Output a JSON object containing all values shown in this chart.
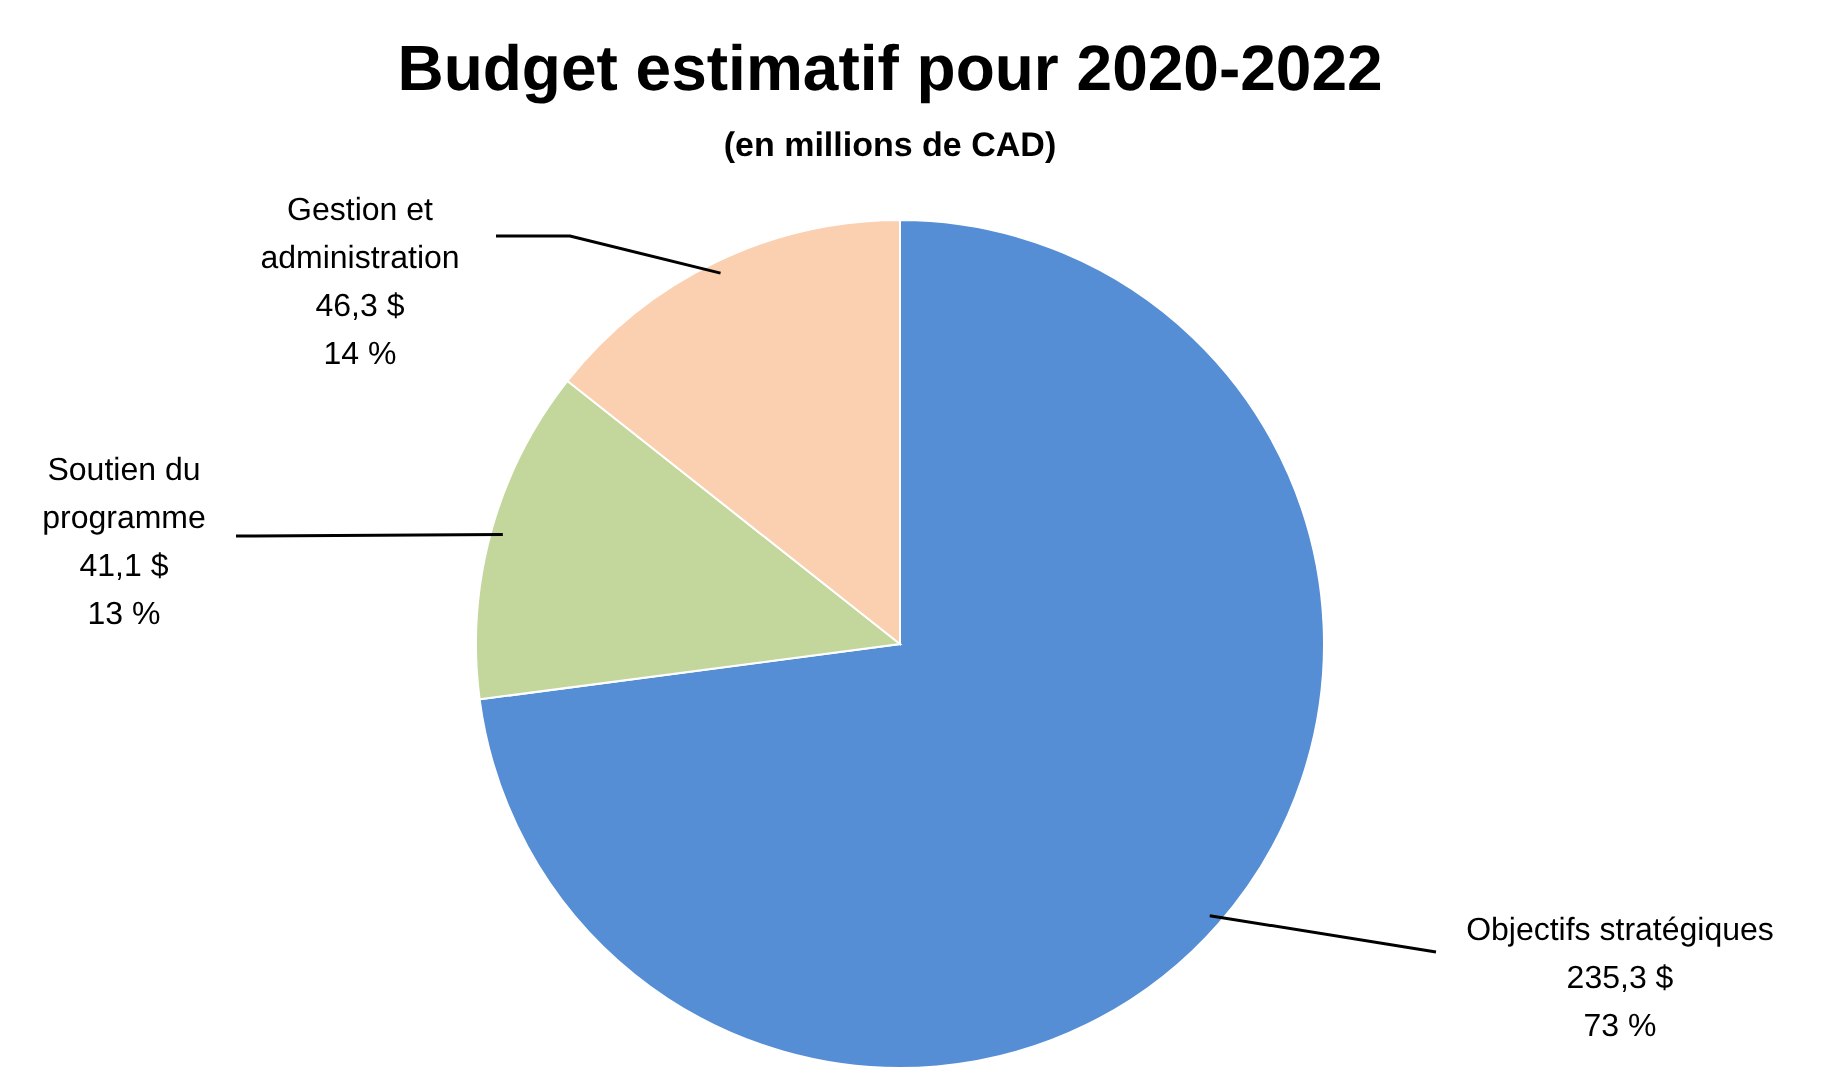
{
  "chart_data": {
    "type": "pie",
    "title": "Budget estimatif pour 2020-2022",
    "subtitle": "(en millions de CAD)",
    "categories": [
      "Objectifs stratégiques",
      "Soutien du programme",
      "Gestion et administration"
    ],
    "values": [
      235.3,
      41.1,
      46.3
    ],
    "value_labels": [
      "235,3 $\n73 %",
      "41,1 $\n13 %",
      "46,3 $\n14 %"
    ],
    "colors": [
      "#558ed5",
      "#c3d69b",
      "#fad0b1"
    ]
  }
}
